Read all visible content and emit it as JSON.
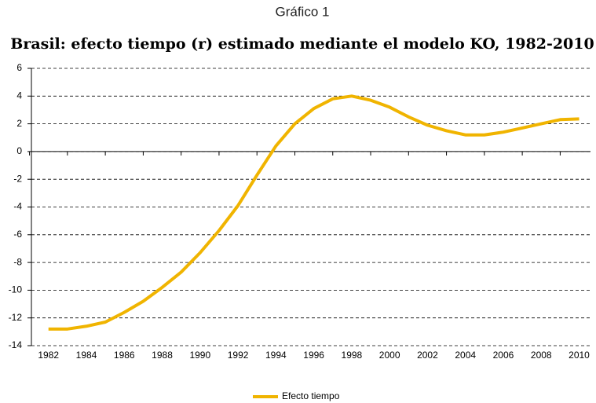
{
  "chart_data": {
    "type": "line",
    "supertitle": "Gráfico 1",
    "title": "Brasil: efecto tiempo (r) estimado mediante el modelo KO, 1982-2010",
    "x": [
      1982,
      1983,
      1984,
      1985,
      1986,
      1987,
      1988,
      1989,
      1990,
      1991,
      1992,
      1993,
      1994,
      1995,
      1996,
      1997,
      1998,
      1999,
      2000,
      2001,
      2002,
      2003,
      2004,
      2005,
      2006,
      2007,
      2008,
      2009,
      2010
    ],
    "series": [
      {
        "name": "Efecto tiempo",
        "color": "#f0b400",
        "values": [
          -12.8,
          -12.8,
          -12.6,
          -12.3,
          -11.6,
          -10.8,
          -9.8,
          -8.7,
          -7.3,
          -5.7,
          -3.9,
          -1.7,
          0.4,
          2.0,
          3.1,
          3.8,
          4.0,
          3.7,
          3.2,
          2.5,
          1.9,
          1.5,
          1.2,
          1.2,
          1.4,
          1.7,
          2.0,
          2.3,
          2.35
        ]
      }
    ],
    "xlim": [
      1981.1,
      2010.6
    ],
    "xticks": [
      1982,
      1984,
      1986,
      1988,
      1990,
      1992,
      1994,
      1996,
      1998,
      2000,
      2002,
      2004,
      2006,
      2008,
      2010
    ],
    "ylim": [
      -14,
      6
    ],
    "yticks": [
      -14,
      -12,
      -10,
      -8,
      -6,
      -4,
      -2,
      0,
      2,
      4,
      6
    ],
    "grid": true,
    "legend": "bottom"
  }
}
